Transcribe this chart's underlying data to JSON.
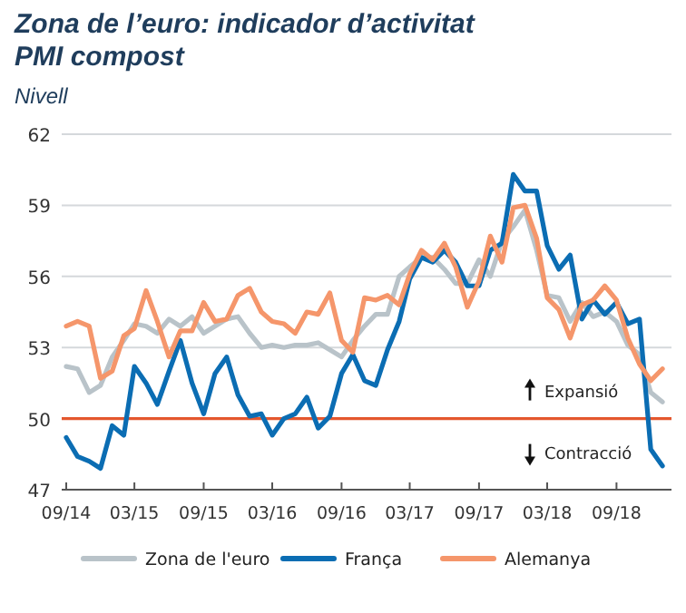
{
  "chart_data": {
    "type": "line",
    "title": "Zona de l’euro: indicador d’activitat PMI compost",
    "subtitle": "Nivell",
    "x": [
      "2014-09",
      "2014-10",
      "2014-11",
      "2014-12",
      "2015-01",
      "2015-02",
      "2015-03",
      "2015-04",
      "2015-05",
      "2015-06",
      "2015-07",
      "2015-08",
      "2015-09",
      "2015-10",
      "2015-11",
      "2015-12",
      "2016-01",
      "2016-02",
      "2016-03",
      "2016-04",
      "2016-05",
      "2016-06",
      "2016-07",
      "2016-08",
      "2016-09",
      "2016-10",
      "2016-11",
      "2016-12",
      "2017-01",
      "2017-02",
      "2017-03",
      "2017-04",
      "2017-05",
      "2017-06",
      "2017-07",
      "2017-08",
      "2017-09",
      "2017-10",
      "2017-11",
      "2017-12",
      "2018-01",
      "2018-02",
      "2018-03",
      "2018-04",
      "2018-05",
      "2018-06",
      "2018-07",
      "2018-08",
      "2018-09",
      "2018-10",
      "2018-11",
      "2018-12",
      "2019-01"
    ],
    "series": [
      {
        "name": "Zona de l'euro",
        "color": "#b9c3c9",
        "values": [
          52.2,
          52.1,
          51.1,
          51.4,
          52.6,
          53.3,
          54.0,
          53.9,
          53.6,
          54.2,
          53.9,
          54.3,
          53.6,
          53.9,
          54.2,
          54.3,
          53.6,
          53.0,
          53.1,
          53.0,
          53.1,
          53.1,
          53.2,
          52.9,
          52.6,
          53.3,
          53.9,
          54.4,
          54.4,
          56.0,
          56.4,
          56.8,
          56.8,
          56.3,
          55.7,
          55.7,
          56.7,
          56.0,
          57.5,
          58.1,
          58.8,
          57.1,
          55.2,
          55.1,
          54.1,
          54.9,
          54.3,
          54.5,
          54.1,
          53.1,
          52.7,
          51.1,
          50.7
        ]
      },
      {
        "name": "França",
        "color": "#0b6db3",
        "values": [
          49.2,
          48.4,
          48.2,
          47.9,
          49.7,
          49.3,
          52.2,
          51.5,
          50.6,
          52.0,
          53.3,
          51.5,
          50.2,
          51.9,
          52.6,
          51.0,
          50.1,
          50.2,
          49.3,
          50.0,
          50.2,
          50.9,
          49.6,
          50.1,
          51.9,
          52.7,
          51.6,
          51.4,
          52.9,
          54.1,
          55.9,
          56.8,
          56.6,
          57.1,
          56.6,
          55.6,
          55.6,
          57.1,
          57.4,
          60.3,
          59.6,
          59.6,
          57.3,
          56.3,
          56.9,
          54.2,
          55.0,
          54.4,
          54.9,
          54.0,
          54.2,
          48.7,
          48.0
        ]
      },
      {
        "name": "Alemanya",
        "color": "#f5966b",
        "values": [
          53.9,
          54.1,
          53.9,
          51.7,
          52.0,
          53.5,
          53.8,
          55.4,
          54.1,
          52.6,
          53.7,
          53.7,
          54.9,
          54.1,
          54.2,
          55.2,
          55.5,
          54.5,
          54.1,
          54.0,
          53.6,
          54.5,
          54.4,
          55.3,
          53.3,
          52.8,
          55.1,
          55.0,
          55.2,
          54.8,
          56.1,
          57.1,
          56.7,
          57.4,
          56.4,
          54.7,
          55.8,
          57.7,
          56.6,
          58.9,
          59.0,
          57.6,
          55.1,
          54.6,
          53.4,
          54.8,
          55.0,
          55.6,
          55.0,
          53.4,
          52.3,
          51.6,
          52.1
        ]
      }
    ],
    "xlim": [
      "2014-08-20",
      "2019-01-25"
    ],
    "xticks": [
      {
        "value": "2014-09",
        "label": "09/14"
      },
      {
        "value": "2015-03",
        "label": "03/15"
      },
      {
        "value": "2015-09",
        "label": "09/15"
      },
      {
        "value": "2016-03",
        "label": "03/16"
      },
      {
        "value": "2016-09",
        "label": "09/16"
      },
      {
        "value": "2017-03",
        "label": "03/17"
      },
      {
        "value": "2017-09",
        "label": "09/17"
      },
      {
        "value": "2018-03",
        "label": "03/18"
      },
      {
        "value": "2018-09",
        "label": "09/18"
      }
    ],
    "ylim": [
      47,
      62
    ],
    "yticks": [
      47,
      50,
      53,
      56,
      59,
      62
    ],
    "grid": "y",
    "legend": "bottom",
    "line_style": "solid",
    "marker": "none",
    "ref_lines": [
      {
        "axis": "y",
        "value": 50,
        "color": "#e4572e"
      }
    ],
    "annotations": [
      "Expansió",
      "Contracció"
    ]
  }
}
